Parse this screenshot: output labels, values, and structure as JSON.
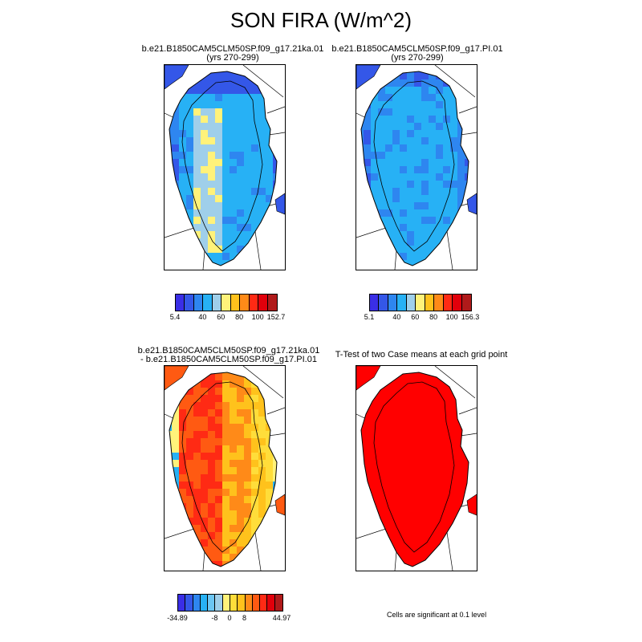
{
  "title": "SON FIRA (W/m^2)",
  "panels": [
    {
      "id": "ka",
      "title_line1": "b.e21.B1850CAM5CLM50SP.f09_g17.21ka.01",
      "title_line2": "(yrs 270-299)",
      "palette": "blue",
      "colorbar": {
        "colors": [
          "#3a2ee6",
          "#3457e8",
          "#2e86f0",
          "#27b1f5",
          "#9fcfea",
          "#fff27a",
          "#ffc21c",
          "#ff8a18",
          "#ff2a14",
          "#e1000b",
          "#b01a1a"
        ],
        "ticks": [
          "5.4",
          "40",
          "60",
          "80",
          "100",
          "152.7"
        ]
      }
    },
    {
      "id": "pi",
      "title_line1": "b.e21.B1850CAM5CLM50SP.f09_g17.PI.01",
      "title_line2": "(yrs 270-299)",
      "palette": "blue",
      "colorbar": {
        "colors": [
          "#3a2ee6",
          "#3457e8",
          "#2e86f0",
          "#27b1f5",
          "#9fcfea",
          "#fff27a",
          "#ffc21c",
          "#ff8a18",
          "#ff2a14",
          "#e1000b",
          "#b01a1a"
        ],
        "ticks": [
          "5.1",
          "40",
          "60",
          "80",
          "100",
          "156.3"
        ]
      }
    },
    {
      "id": "diff",
      "title_line1": "b.e21.B1850CAM5CLM50SP.f09_g17.21ka.01",
      "title_line2": "- b.e21.B1850CAM5CLM50SP.f09_g17.PI.01",
      "palette": "diff",
      "colorbar": {
        "colors": [
          "#3a2ee6",
          "#3457e8",
          "#2e86f0",
          "#27b1f5",
          "#6cc6f3",
          "#9fcfea",
          "#fff27a",
          "#ffdd3a",
          "#ffc21c",
          "#ff8a18",
          "#ff5a12",
          "#ff2a14",
          "#e1000b",
          "#b01a1a"
        ],
        "ticks": [
          "-34.89",
          "-8",
          "0",
          "8",
          "44.97"
        ]
      }
    },
    {
      "id": "ttest",
      "title_line1": "T-Test of two Case means at each grid point",
      "title_line2": "",
      "palette": "sig",
      "note": "Cells are significant at 0.1 level"
    }
  ]
}
